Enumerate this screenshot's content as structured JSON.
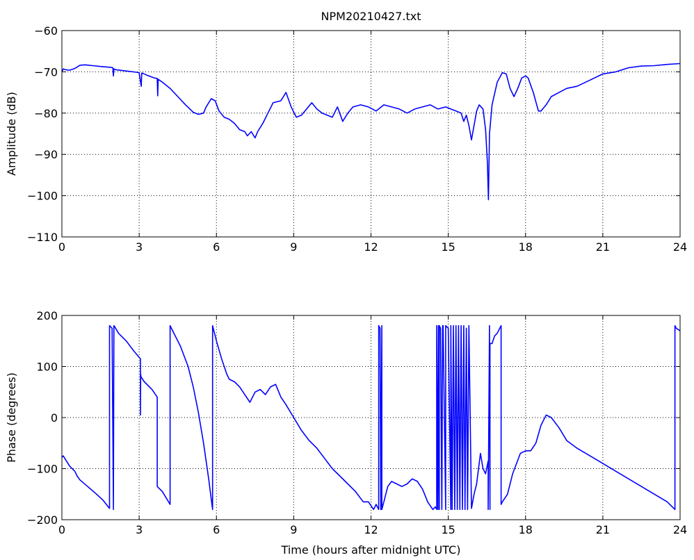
{
  "colors": {
    "line": "#0000ff",
    "axis": "#000000",
    "grid": "#000000",
    "background": "#ffffff"
  },
  "chart_data": [
    {
      "type": "line",
      "title": "NPM20210427.txt",
      "xlabel": "",
      "ylabel": "Amplitude (dB)",
      "xlim": [
        0,
        24
      ],
      "ylim": [
        -110,
        -60
      ],
      "xticks": [
        0,
        3,
        6,
        9,
        12,
        15,
        18,
        21,
        24
      ],
      "yticks": [
        -110,
        -100,
        -90,
        -80,
        -70,
        -60
      ],
      "grid": true,
      "series": [
        {
          "x": [
            0,
            0.05,
            0.15,
            0.3,
            0.5,
            0.7,
            0.9,
            1.2,
            1.5,
            1.9,
            1.98,
            2.0,
            2.02,
            2.1,
            2.5,
            2.9,
            3.0,
            3.08,
            3.1,
            3.12,
            3.3,
            3.6,
            3.7,
            3.72,
            3.74,
            3.9,
            4.2,
            4.5,
            4.8,
            5.1,
            5.3,
            5.5,
            5.6,
            5.8,
            5.95,
            6.1,
            6.3,
            6.5,
            6.7,
            6.9,
            7.1,
            7.2,
            7.35,
            7.5,
            7.6,
            7.8,
            8.0,
            8.2,
            8.5,
            8.7,
            8.9,
            9.1,
            9.3,
            9.5,
            9.7,
            9.9,
            10.1,
            10.3,
            10.5,
            10.7,
            10.9,
            11.1,
            11.3,
            11.6,
            11.9,
            12.2,
            12.5,
            12.8,
            13.1,
            13.4,
            13.7,
            14.0,
            14.3,
            14.6,
            14.9,
            15.1,
            15.3,
            15.5,
            15.6,
            15.7,
            15.8,
            15.9,
            16.0,
            16.1,
            16.2,
            16.35,
            16.45,
            16.52,
            16.56,
            16.6,
            16.7,
            16.9,
            17.1,
            17.25,
            17.4,
            17.55,
            17.7,
            17.85,
            18.0,
            18.1,
            18.3,
            18.5,
            18.6,
            18.8,
            19.0,
            19.3,
            19.6,
            20.0,
            20.5,
            21.0,
            21.5,
            22.0,
            22.5,
            23.0,
            23.5,
            24.0
          ],
          "values": [
            -70,
            -69.3,
            -69.5,
            -69.6,
            -69.2,
            -68.4,
            -68.3,
            -68.5,
            -68.7,
            -68.9,
            -69.0,
            -71.0,
            -69.3,
            -69.5,
            -69.8,
            -70.1,
            -70.2,
            -73.5,
            -70.3,
            -70.3,
            -70.8,
            -71.5,
            -71.6,
            -75.8,
            -71.8,
            -72.5,
            -74.0,
            -76.0,
            -78.0,
            -79.8,
            -80.3,
            -80.0,
            -78.5,
            -76.5,
            -77.0,
            -79.5,
            -81.0,
            -81.5,
            -82.5,
            -84.0,
            -84.5,
            -85.5,
            -84.5,
            -86.0,
            -84.5,
            -82.5,
            -80.0,
            -77.5,
            -77.0,
            -75.0,
            -78.5,
            -81.0,
            -80.5,
            -79.0,
            -77.5,
            -79.0,
            -80.0,
            -80.5,
            -81.0,
            -78.5,
            -82.0,
            -80.0,
            -78.5,
            -78.0,
            -78.5,
            -79.5,
            -78.0,
            -78.5,
            -79.0,
            -80.0,
            -79.0,
            -78.5,
            -78.0,
            -79.0,
            -78.5,
            -79.0,
            -79.5,
            -80.0,
            -82.0,
            -80.5,
            -83.0,
            -86.5,
            -83.0,
            -79.5,
            -78.0,
            -79.0,
            -84.0,
            -92.0,
            -101.0,
            -85.0,
            -78.0,
            -72.5,
            -70.2,
            -70.5,
            -74.0,
            -76.0,
            -74.0,
            -71.5,
            -71.0,
            -71.5,
            -75.0,
            -79.5,
            -79.5,
            -78.0,
            -76.0,
            -75.0,
            -74.0,
            -73.5,
            -72.0,
            -70.5,
            -70.0,
            -69.0,
            -68.6,
            -68.5,
            -68.2,
            -68.0
          ]
        }
      ]
    },
    {
      "type": "line",
      "title": "",
      "xlabel": "Time (hours after midnight UTC)",
      "ylabel": "Phase (degrees)",
      "xlim": [
        0,
        24
      ],
      "ylim": [
        -200,
        200
      ],
      "xticks": [
        0,
        3,
        6,
        9,
        12,
        15,
        18,
        21,
        24
      ],
      "yticks": [
        -200,
        -100,
        0,
        100,
        200
      ],
      "grid": true,
      "series": [
        {
          "x": [
            0,
            0.05,
            0.3,
            0.5,
            0.6,
            0.7,
            1.0,
            1.3,
            1.6,
            1.85,
            1.85,
            1.95,
            2.0,
            2.02,
            2.05,
            2.2,
            2.5,
            2.8,
            3.05,
            3.05,
            3.06,
            3.07,
            3.2,
            3.5,
            3.7,
            3.7,
            3.9,
            4.2,
            4.2,
            4.3,
            4.6,
            4.9,
            5.1,
            5.3,
            5.5,
            5.7,
            5.85,
            5.85,
            6.0,
            6.2,
            6.4,
            6.5,
            6.7,
            6.9,
            7.1,
            7.3,
            7.5,
            7.7,
            7.9,
            8.1,
            8.3,
            8.5,
            8.7,
            9.0,
            9.3,
            9.6,
            9.9,
            10.2,
            10.5,
            10.8,
            11.1,
            11.4,
            11.7,
            11.9,
            12.1,
            12.2,
            12.3,
            12.3,
            12.35,
            12.38,
            12.42,
            12.42,
            12.5,
            12.65,
            12.8,
            13.0,
            13.2,
            13.4,
            13.6,
            13.8,
            14.0,
            14.2,
            14.4,
            14.5,
            14.55,
            14.55,
            14.6,
            14.62,
            14.65,
            14.65,
            14.7,
            14.75,
            14.78,
            14.8,
            14.9,
            14.9,
            15.0,
            15.1,
            15.1,
            15.15,
            15.2,
            15.25,
            15.3,
            15.35,
            15.4,
            15.45,
            15.5,
            15.55,
            15.6,
            15.65,
            15.7,
            15.75,
            15.8,
            15.9,
            16.0,
            16.1,
            16.15,
            16.25,
            16.35,
            16.45,
            16.55,
            16.55,
            16.6,
            16.62,
            16.62,
            16.7,
            16.8,
            16.9,
            17.0,
            17.05,
            17.05,
            17.1,
            17.3,
            17.5,
            17.8,
            18.0,
            18.2,
            18.4,
            18.6,
            18.8,
            19.0,
            19.3,
            19.6,
            20.0,
            20.5,
            21.0,
            21.5,
            22.0,
            22.5,
            23.0,
            23.5,
            23.8,
            23.8,
            23.85,
            24.0
          ],
          "values": [
            -78,
            -75,
            -95,
            -105,
            -115,
            -122,
            -135,
            -148,
            -162,
            -178,
            180,
            175,
            -180,
            180,
            178,
            165,
            150,
            130,
            115,
            5,
            85,
            80,
            70,
            55,
            40,
            -135,
            -145,
            -170,
            180,
            170,
            140,
            100,
            60,
            10,
            -50,
            -120,
            -180,
            180,
            150,
            115,
            85,
            75,
            70,
            60,
            45,
            30,
            50,
            55,
            45,
            60,
            65,
            40,
            25,
            0,
            -25,
            -45,
            -60,
            -80,
            -100,
            -115,
            -130,
            -145,
            -165,
            -165,
            -180,
            -170,
            -180,
            180,
            175,
            -180,
            180,
            -180,
            -165,
            -135,
            -125,
            -130,
            -135,
            -130,
            -120,
            -125,
            -140,
            -165,
            -180,
            -175,
            -180,
            180,
            -180,
            180,
            -180,
            180,
            175,
            -180,
            180,
            180,
            -180,
            180,
            175,
            -180,
            180,
            -180,
            180,
            -180,
            180,
            -180,
            180,
            -180,
            180,
            -180,
            180,
            -180,
            175,
            -180,
            180,
            -178,
            -150,
            -130,
            -110,
            -70,
            -100,
            -110,
            -85,
            -180,
            180,
            -180,
            145,
            145,
            160,
            165,
            175,
            180,
            -170,
            -165,
            -150,
            -110,
            -70,
            -65,
            -65,
            -50,
            -15,
            5,
            0,
            -20,
            -45,
            -60,
            -75,
            -90,
            -105,
            -120,
            -135,
            -150,
            -165,
            -180,
            180,
            175,
            170
          ]
        }
      ]
    }
  ]
}
